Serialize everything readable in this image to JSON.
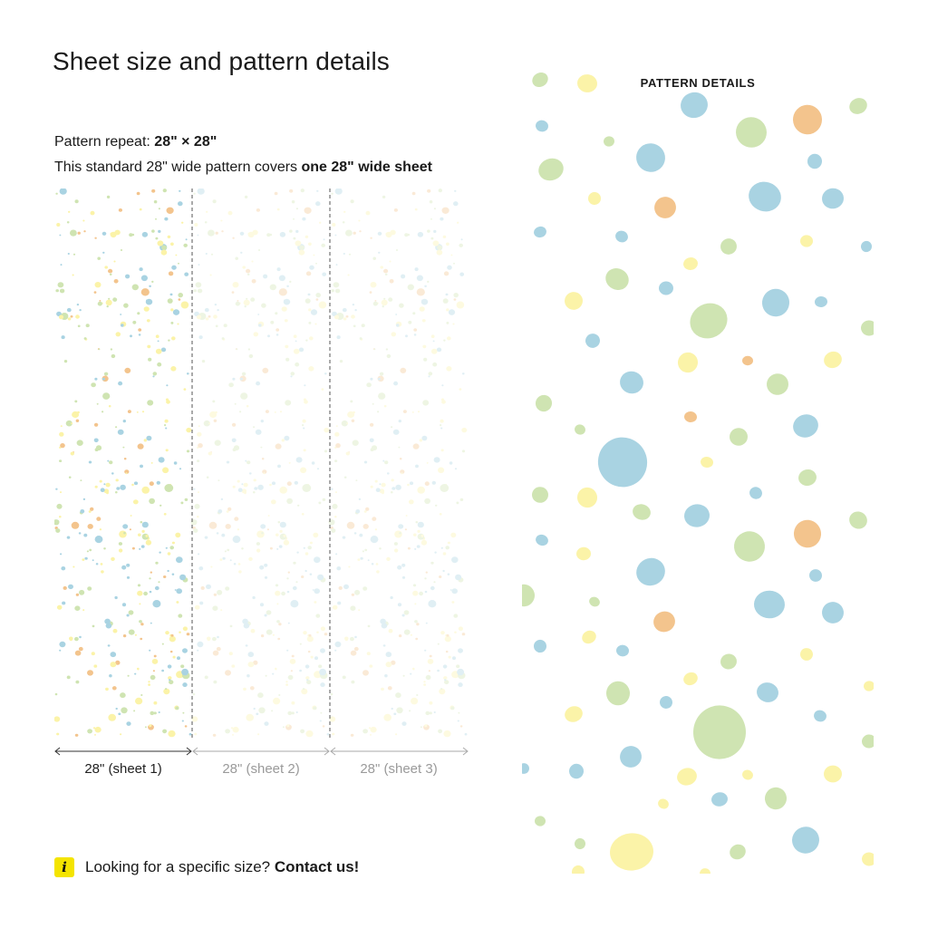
{
  "page": {
    "title": "Sheet size and pattern details"
  },
  "repeat": {
    "prefix": "Pattern repeat: ",
    "value": "28\" × 28\""
  },
  "coverage": {
    "prefix": "This standard 28\" wide pattern covers ",
    "emphasis": "one 28\" wide sheet"
  },
  "sheets": [
    {
      "label": "28\" (sheet 1)",
      "active": true
    },
    {
      "label": "28\" (sheet 2)",
      "active": false
    },
    {
      "label": "28\" (sheet 3)",
      "active": false
    }
  ],
  "info": {
    "icon": "info-icon",
    "text": "Looking for a specific size? ",
    "link": "Contact us!"
  },
  "detail": {
    "title": "PATTERN DETAILS"
  },
  "colors": {
    "blue": "#a9d3e2",
    "green": "#cfe4b2",
    "yellow": "#fbf3a8",
    "orange": "#f3c48d",
    "accent": "#f4e400"
  }
}
